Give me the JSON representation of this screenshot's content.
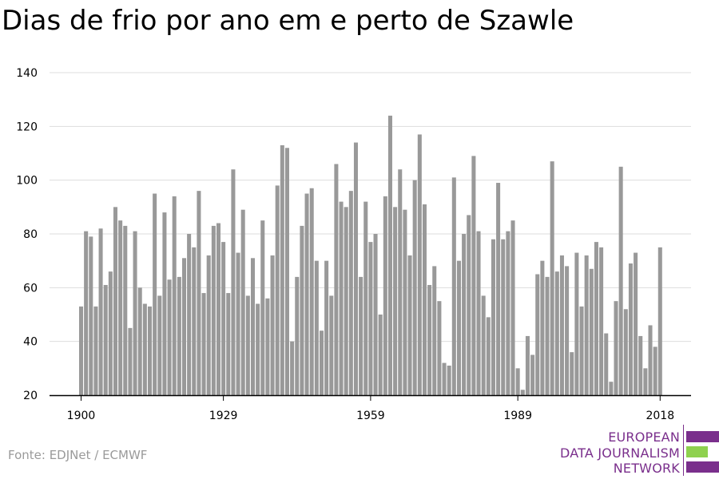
{
  "title": "Dias de frio por ano em e perto de Szawle",
  "source": "Fonte: EDJNet / ECMWF",
  "brand": {
    "lines": [
      "EUROPEAN",
      "DATA JOURNALISM",
      "NETWORK"
    ],
    "colors": {
      "purple": "#7a2f8c",
      "green": "#8fd14f"
    }
  },
  "chart_data": {
    "type": "bar",
    "title": "Dias de frio por ano em e perto de Szawle",
    "xlabel": "",
    "ylabel": "",
    "ylim": [
      20,
      140
    ],
    "yticks": [
      20,
      40,
      60,
      80,
      100,
      120,
      140
    ],
    "xtick_labels": [
      "1900",
      "1929",
      "1959",
      "1989",
      "2018"
    ],
    "grid": true,
    "bar_color": "#999999",
    "x": [
      1900,
      1901,
      1902,
      1903,
      1904,
      1905,
      1906,
      1907,
      1908,
      1909,
      1910,
      1911,
      1912,
      1913,
      1914,
      1915,
      1916,
      1917,
      1918,
      1919,
      1920,
      1921,
      1922,
      1923,
      1924,
      1925,
      1926,
      1927,
      1928,
      1929,
      1930,
      1931,
      1932,
      1933,
      1934,
      1935,
      1936,
      1937,
      1938,
      1939,
      1940,
      1941,
      1942,
      1943,
      1944,
      1945,
      1946,
      1947,
      1948,
      1949,
      1950,
      1951,
      1952,
      1953,
      1954,
      1955,
      1956,
      1957,
      1958,
      1959,
      1960,
      1961,
      1962,
      1963,
      1964,
      1965,
      1966,
      1967,
      1968,
      1969,
      1970,
      1971,
      1972,
      1973,
      1974,
      1975,
      1976,
      1977,
      1978,
      1979,
      1980,
      1981,
      1982,
      1983,
      1984,
      1985,
      1986,
      1987,
      1988,
      1989,
      1990,
      1991,
      1992,
      1993,
      1994,
      1995,
      1996,
      1997,
      1998,
      1999,
      2000,
      2001,
      2002,
      2003,
      2004,
      2005,
      2006,
      2007,
      2008,
      2009,
      2010,
      2011,
      2012,
      2013,
      2014,
      2015,
      2016,
      2017,
      2018
    ],
    "values": [
      53,
      81,
      79,
      53,
      82,
      61,
      66,
      90,
      85,
      83,
      45,
      81,
      60,
      54,
      53,
      95,
      57,
      88,
      63,
      94,
      64,
      71,
      80,
      75,
      96,
      58,
      72,
      83,
      84,
      77,
      58,
      104,
      73,
      89,
      57,
      71,
      54,
      85,
      56,
      72,
      98,
      113,
      112,
      40,
      64,
      83,
      95,
      97,
      70,
      44,
      70,
      57,
      106,
      92,
      90,
      96,
      114,
      64,
      92,
      77,
      80,
      50,
      94,
      124,
      90,
      104,
      89,
      72,
      100,
      117,
      91,
      61,
      68,
      55,
      32,
      31,
      101,
      70,
      80,
      87,
      109,
      81,
      57,
      49,
      78,
      99,
      78,
      81,
      85,
      30,
      22,
      42,
      35,
      65,
      70,
      64,
      107,
      66,
      72,
      68,
      36,
      73,
      53,
      72,
      67,
      77,
      75,
      43,
      25,
      55,
      105,
      52,
      69,
      73,
      42,
      30,
      46,
      38,
      75
    ]
  }
}
